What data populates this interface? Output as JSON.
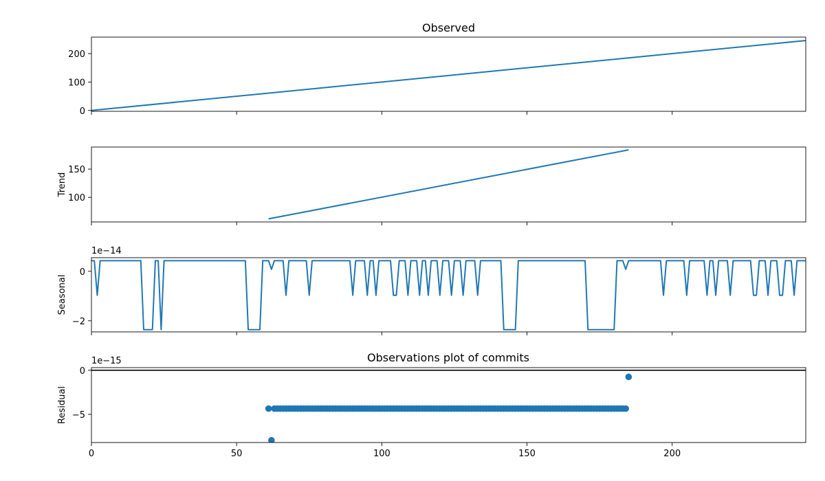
{
  "figure_title": "Observations plot of commits",
  "accent_color": "#1f77b4",
  "chart_data": [
    {
      "type": "line",
      "title": "Observed",
      "ylabel": "",
      "xlim": [
        0,
        246
      ],
      "ylim": [
        -3,
        258
      ],
      "yticks": [
        0,
        100,
        200
      ],
      "series": [
        {
          "x": [
            0,
            246
          ],
          "y": [
            0,
            246
          ]
        }
      ]
    },
    {
      "type": "line",
      "title": "",
      "ylabel": "Trend",
      "xlim": [
        0,
        246
      ],
      "ylim": [
        56.5,
        189
      ],
      "yticks": [
        100,
        150
      ],
      "series": [
        {
          "x": [
            61,
            185
          ],
          "y": [
            62,
            184
          ]
        }
      ]
    },
    {
      "type": "line",
      "title": "",
      "ylabel": "Seasonal",
      "offset_text": "1e−14",
      "xlim": [
        0,
        246
      ],
      "ylim": [
        -2.45,
        0.55
      ],
      "yticks": [
        0,
        -2
      ],
      "base_value": 0.43,
      "low_value": -0.97,
      "deep_value": -2.36,
      "dip_value": 0.08,
      "deep_dip_ranges": [
        [
          18,
          21
        ],
        [
          54,
          58
        ],
        [
          142,
          146
        ],
        [
          171,
          180
        ]
      ],
      "deep_dip_singles": [
        24,
        57,
        144,
        180
      ],
      "low_dips": [
        2,
        67,
        75,
        90,
        95,
        98,
        104,
        105,
        109,
        113,
        116,
        120,
        124,
        128,
        133,
        197,
        205,
        212,
        215,
        220,
        228,
        229,
        233,
        237,
        238,
        242
      ],
      "small_dips": [
        62,
        184
      ]
    },
    {
      "type": "scatter",
      "title": "",
      "ylabel": "Residual",
      "offset_text": "1e−15",
      "xlim": [
        0,
        246
      ],
      "ylim": [
        -8.2,
        0.3
      ],
      "yticks": [
        0,
        -5
      ],
      "xticks": [
        0,
        50,
        100,
        150,
        200
      ],
      "hline": 0,
      "series": [
        {
          "x_start": 61,
          "x_end": 185,
          "value": -4.35,
          "exceptions": [
            {
              "x": 62,
              "y": -7.95
            },
            {
              "x": 185,
              "y": -0.75
            }
          ]
        }
      ]
    }
  ]
}
